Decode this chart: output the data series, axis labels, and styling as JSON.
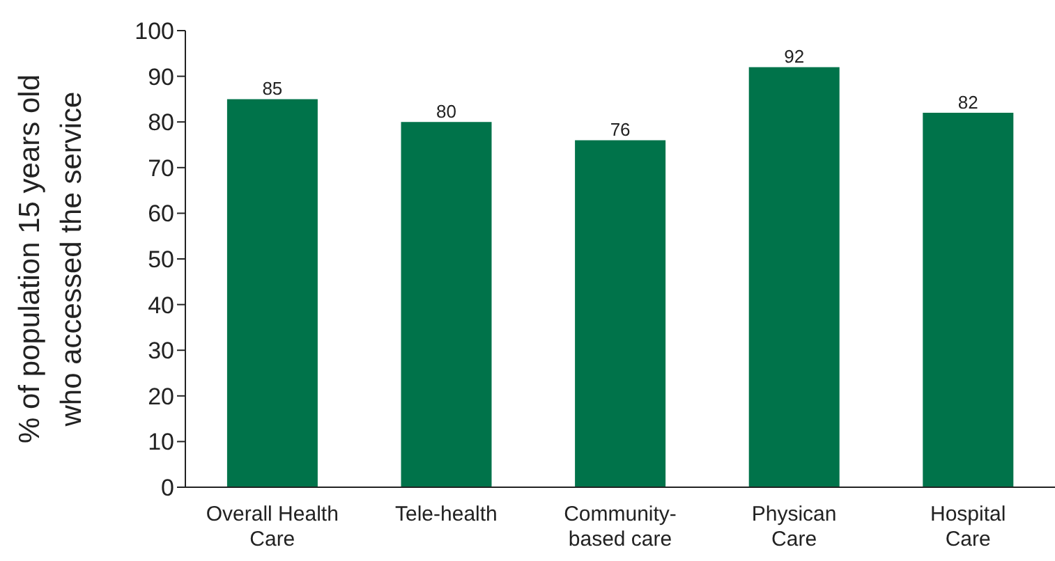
{
  "chart_data": {
    "type": "bar",
    "ylabel": "% of population 15 years old who accessed the service",
    "categories": [
      "Overall Health Care",
      "Tele-health",
      "Community-based care",
      "Physican Care",
      "Hospital Care"
    ],
    "values": [
      85,
      80,
      76,
      92,
      82
    ],
    "color": "#00734a",
    "ylim": [
      0,
      100
    ],
    "yticks": [
      0,
      10,
      20,
      30,
      40,
      50,
      60,
      70,
      80,
      90,
      100
    ],
    "grid": false,
    "data_labels": true
  }
}
